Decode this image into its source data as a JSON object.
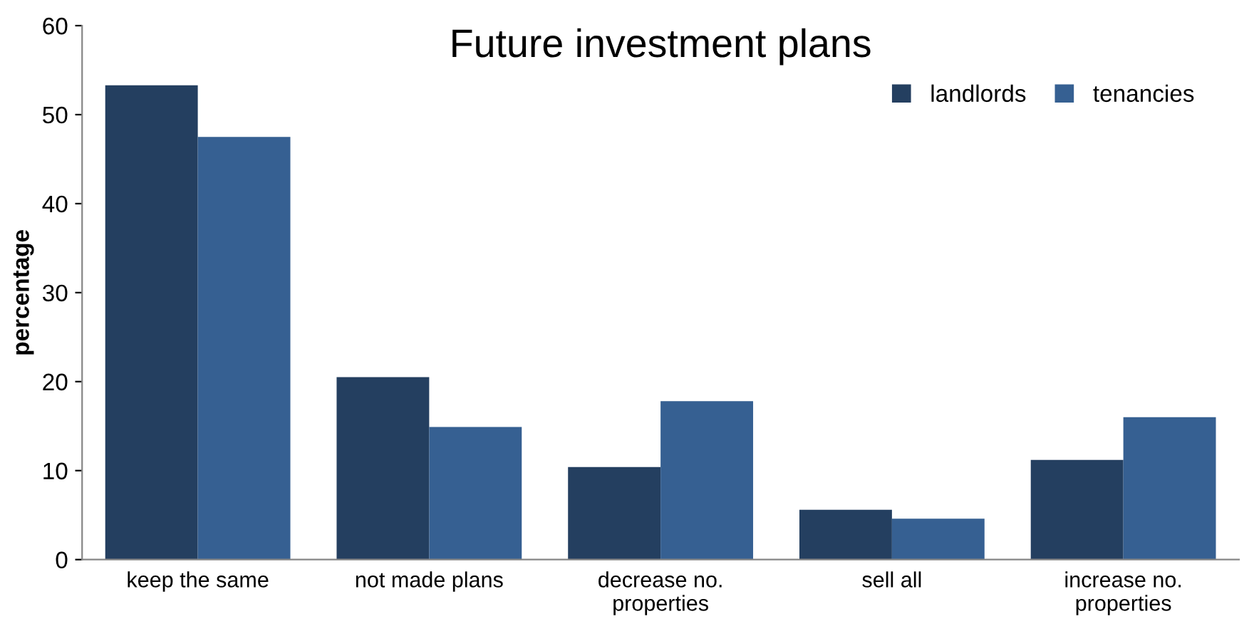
{
  "chart_data": {
    "type": "bar",
    "title": "Future investment plans",
    "ylabel": "percentage",
    "categories": [
      "keep the same",
      "not made plans",
      "decrease no.\nproperties",
      "sell all",
      "increase no.\nproperties"
    ],
    "series": [
      {
        "name": "landlords",
        "color": "#243f60",
        "values": [
          53.3,
          20.5,
          10.4,
          5.6,
          11.2
        ]
      },
      {
        "name": "tenancies",
        "color": "#366092",
        "values": [
          47.5,
          14.9,
          17.8,
          4.6,
          16.0
        ]
      }
    ],
    "ylim": [
      0,
      60
    ],
    "yticks": [
      0,
      10,
      20,
      30,
      40,
      50,
      60
    ],
    "grid": false,
    "legend": "top right"
  }
}
